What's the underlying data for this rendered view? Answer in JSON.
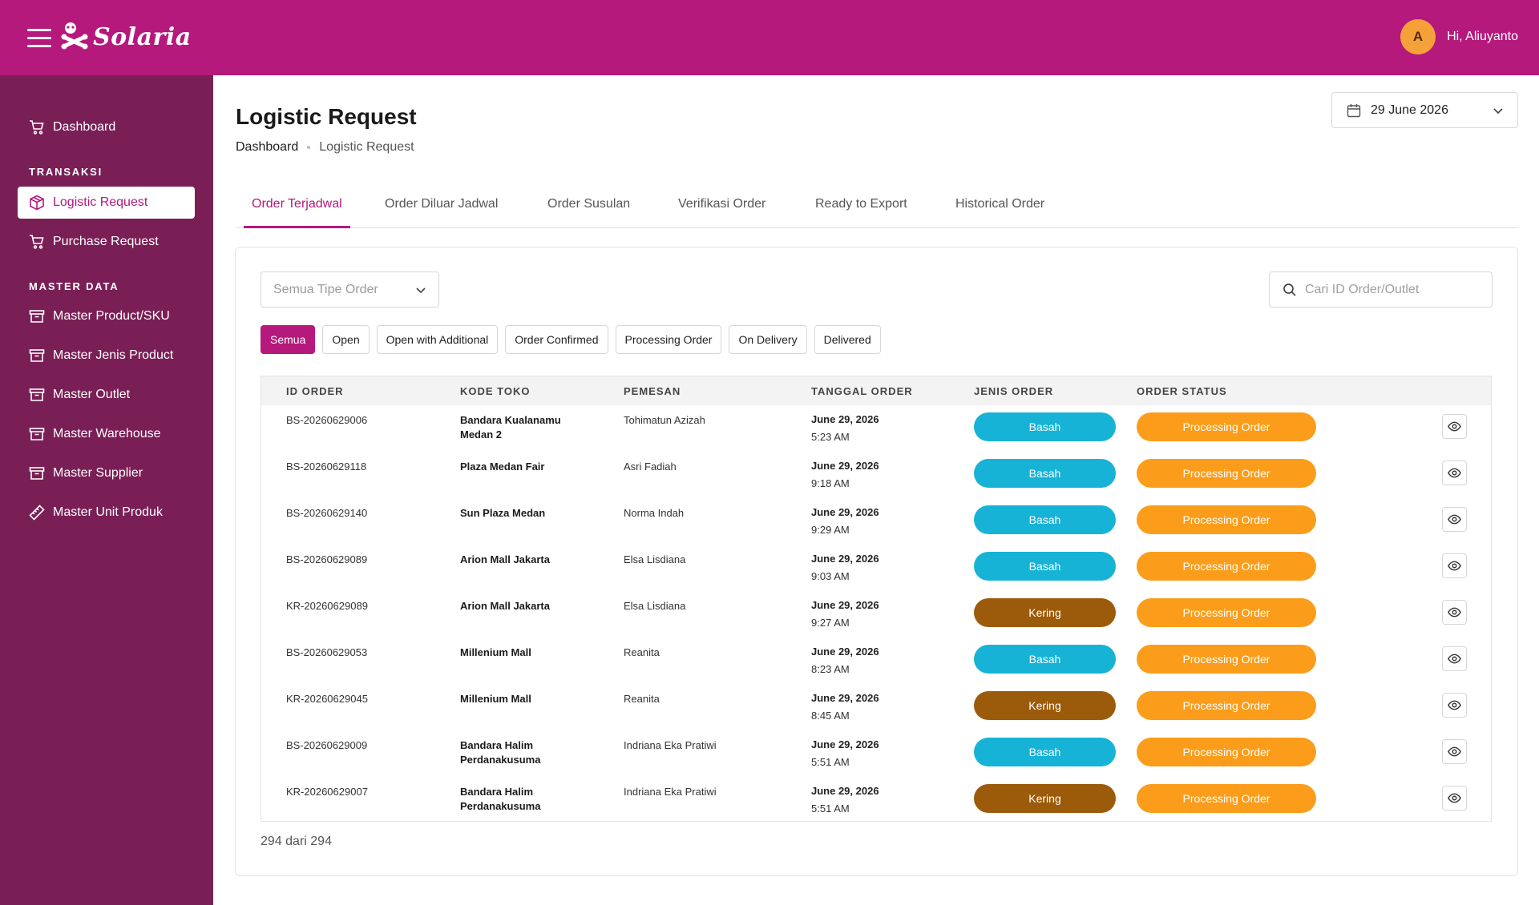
{
  "header": {
    "brand": "Solaria",
    "avatar_initial": "A",
    "greeting": "Hi, Aliuyanto",
    "color": "#b5197c"
  },
  "sidebar": {
    "color": "#7a1f56",
    "top_items": [
      {
        "label": "Dashboard",
        "icon": "cart-icon"
      }
    ],
    "sections": [
      {
        "title": "TRANSAKSI",
        "items": [
          {
            "label": "Logistic Request",
            "icon": "box-icon",
            "active": true
          },
          {
            "label": "Purchase Request",
            "icon": "cart-icon"
          }
        ]
      },
      {
        "title": "MASTER DATA",
        "items": [
          {
            "label": "Master Product/SKU",
            "icon": "archive-icon"
          },
          {
            "label": "Master Jenis Product",
            "icon": "archive-icon"
          },
          {
            "label": "Master Outlet",
            "icon": "archive-icon"
          },
          {
            "label": "Master Warehouse",
            "icon": "archive-icon"
          },
          {
            "label": "Master Supplier",
            "icon": "archive-icon"
          },
          {
            "label": "Master Unit Produk",
            "icon": "ruler-icon"
          }
        ]
      }
    ]
  },
  "page": {
    "title": "Logistic Request",
    "breadcrumb": {
      "home": "Dashboard",
      "current": "Logistic Request"
    },
    "date": "29 June 2026"
  },
  "tabs": [
    {
      "label": "Order Terjadwal",
      "active": true
    },
    {
      "label": "Order Diluar Jadwal"
    },
    {
      "label": "Order Susulan"
    },
    {
      "label": "Verifikasi Order"
    },
    {
      "label": "Ready to Export"
    },
    {
      "label": "Historical Order"
    }
  ],
  "filters": {
    "type_select_value": "Semua Tipe Order",
    "search_placeholder": "Cari ID Order/Outlet",
    "chips": [
      {
        "label": "Semua",
        "active": true
      },
      {
        "label": "Open"
      },
      {
        "label": "Open with Additional"
      },
      {
        "label": "Order Confirmed"
      },
      {
        "label": "Processing Order"
      },
      {
        "label": "On Delivery"
      },
      {
        "label": "Delivered"
      }
    ]
  },
  "table": {
    "columns": [
      "ID ORDER",
      "KODE TOKO",
      "PEMESAN",
      "TANGGAL ORDER",
      "JENIS ORDER",
      "ORDER STATUS"
    ],
    "rows": [
      {
        "id": "BS-20260629006",
        "store": "Bandara Kualanamu Medan 2",
        "orderer": "Tohimatun Azizah",
        "date": "June 29, 2026",
        "time": "5:23 AM",
        "type": "Basah",
        "status": "Processing Order"
      },
      {
        "id": "BS-20260629118",
        "store": "Plaza Medan Fair",
        "orderer": "Asri Fadiah",
        "date": "June 29, 2026",
        "time": "9:18 AM",
        "type": "Basah",
        "status": "Processing Order"
      },
      {
        "id": "BS-20260629140",
        "store": "Sun Plaza Medan",
        "orderer": "Norma Indah",
        "date": "June 29, 2026",
        "time": "9:29 AM",
        "type": "Basah",
        "status": "Processing Order"
      },
      {
        "id": "BS-20260629089",
        "store": "Arion Mall Jakarta",
        "orderer": "Elsa Lisdiana",
        "date": "June 29, 2026",
        "time": "9:03 AM",
        "type": "Basah",
        "status": "Processing Order"
      },
      {
        "id": "KR-20260629089",
        "store": "Arion Mall Jakarta",
        "orderer": "Elsa Lisdiana",
        "date": "June 29, 2026",
        "time": "9:27 AM",
        "type": "Kering",
        "status": "Processing Order"
      },
      {
        "id": "BS-20260629053",
        "store": "Millenium Mall",
        "orderer": "Reanita",
        "date": "June 29, 2026",
        "time": "8:23 AM",
        "type": "Basah",
        "status": "Processing Order"
      },
      {
        "id": "KR-20260629045",
        "store": "Millenium Mall",
        "orderer": "Reanita",
        "date": "June 29, 2026",
        "time": "8:45 AM",
        "type": "Kering",
        "status": "Processing Order"
      },
      {
        "id": "BS-20260629009",
        "store": "Bandara Halim Perdanakusuma",
        "orderer": "Indriana Eka Pratiwi",
        "date": "June 29, 2026",
        "time": "5:51 AM",
        "type": "Basah",
        "status": "Processing Order"
      },
      {
        "id": "KR-20260629007",
        "store": "Bandara Halim Perdanakusuma",
        "orderer": "Indriana Eka Pratiwi",
        "date": "June 29, 2026",
        "time": "5:51 AM",
        "type": "Kering",
        "status": "Processing Order"
      }
    ],
    "type_colors": {
      "Basah": "#17b3d6",
      "Kering": "#9c5b0a"
    },
    "status_color": "#fb9d1a",
    "row_action_icon": "eye-icon"
  },
  "pagination": {
    "count_text": "294 dari 294"
  }
}
